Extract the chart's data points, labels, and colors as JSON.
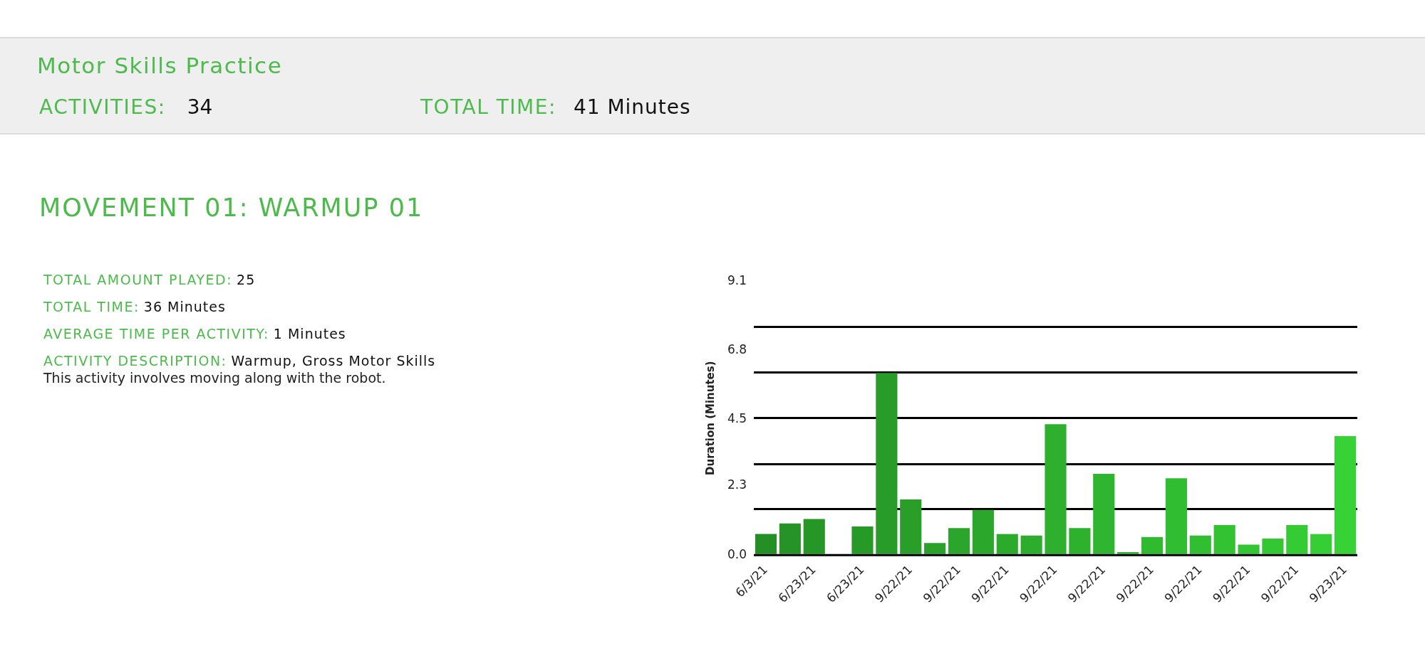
{
  "chart_data": {
    "type": "bar",
    "title": "Motor Skills Practice",
    "subtitle": "MOVEMENT 01: WARMUP 01",
    "ylabel": "Duration (Minutes)",
    "categories": [
      "6/3/21",
      null,
      "6/23/21",
      null,
      "6/23/21",
      null,
      "9/22/21",
      null,
      "9/22/21",
      null,
      "9/22/21",
      null,
      "9/22/21",
      null,
      "9/22/21",
      null,
      "9/22/21",
      null,
      "9/22/21",
      null,
      "9/22/21",
      null,
      "9/22/21",
      null,
      "9/23/21"
    ],
    "values": [
      0.7,
      1.05,
      1.2,
      0,
      0.95,
      6.05,
      1.85,
      0.4,
      0.9,
      1.5,
      0.7,
      0.65,
      4.35,
      0.9,
      2.7,
      0.1,
      0.6,
      2.55,
      0.65,
      1.0,
      0.35,
      0.55,
      1.0,
      0.7,
      3.95
    ],
    "colors": [
      "#248f24",
      "#259325",
      "#269626",
      "#279927",
      "#279927",
      "#289c28",
      "#299f29",
      "#2aa22a",
      "#2ba52b",
      "#2ba72b",
      "#2caa2c",
      "#2dad2d",
      "#2eb02e",
      "#2eb22e",
      "#2fb52f",
      "#30b730",
      "#30ba30",
      "#31bd31",
      "#31bf31",
      "#32c232",
      "#33c533",
      "#33c833",
      "#34cb34",
      "#35ce35",
      "#36d236"
    ],
    "ylim": [
      0,
      9.1
    ],
    "yticks": [
      {
        "value": 0,
        "label": "0.0"
      },
      {
        "value": 1.52,
        "label": null
      },
      2.3,
      {
        "value": 3.03,
        "label": null
      },
      4.5,
      {
        "value": 4.55,
        "label": null
      },
      {
        "value": 6.07,
        "label": null
      },
      6.8,
      {
        "value": 7.58,
        "label": null
      },
      9.1
    ],
    "grid": "y",
    "legend": false,
    "annotations": [
      "ACTIVITIES:",
      "34",
      "TOTAL TIME:",
      "41 Minutes",
      "TOTAL AMOUNT PLAYED:",
      "25",
      "TOTAL TIME:",
      "36 Minutes",
      "AVERAGE TIME PER ACTIVITY:",
      "1 Minutes",
      "ACTIVITY DESCRIPTION:",
      "Warmup, Gross Motor Skills",
      "This activity involves moving along with the robot."
    ]
  }
}
